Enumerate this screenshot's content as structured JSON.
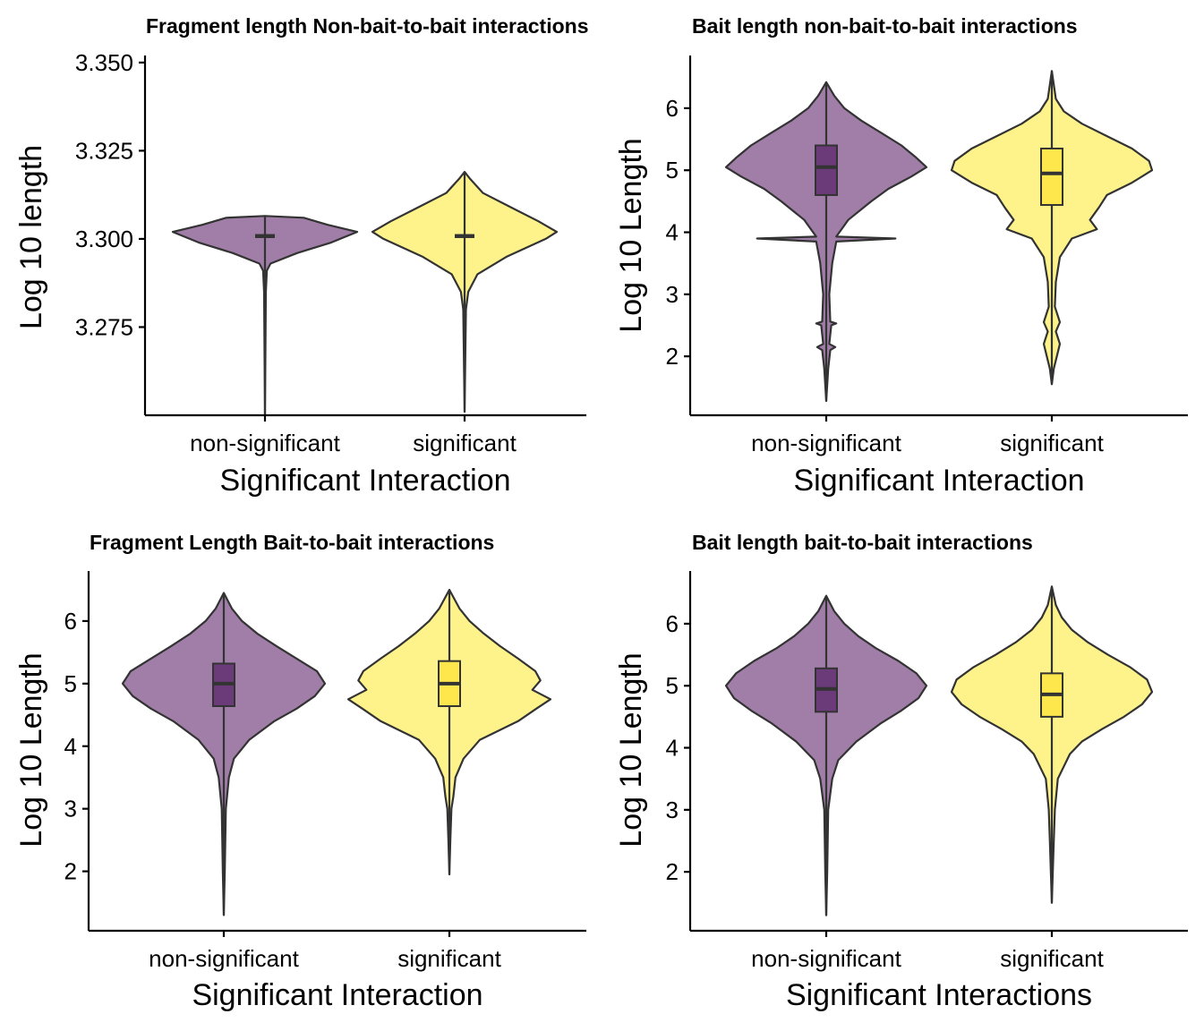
{
  "colors": {
    "non_significant_fill": "#a07ea8",
    "significant_fill": "#fef38b",
    "non_significant_box": "#6b3a78",
    "significant_box": "#fde74c",
    "outline": "#333333",
    "axis": "#000000"
  },
  "chart_data": [
    {
      "type": "violin",
      "title": "Fragment length Non-bait-to-bait interactions",
      "xlabel": "Significant Interaction",
      "ylabel": "Log 10 length",
      "categories": [
        "non-significant",
        "significant"
      ],
      "ylim": [
        3.25,
        3.352
      ],
      "yticks": [
        "3.275",
        "3.300",
        "3.325",
        "3.350"
      ],
      "ytick_values": [
        3.275,
        3.3,
        3.325,
        3.35
      ],
      "grid": false,
      "legend": "none",
      "series": [
        {
          "category": "non-significant",
          "box": {
            "q1": 3.3005,
            "median": 3.3008,
            "q3": 3.3011
          },
          "profile": [
            [
              3.25,
              0.0
            ],
            [
              3.285,
              0.01
            ],
            [
              3.291,
              0.02
            ],
            [
              3.293,
              0.06
            ],
            [
              3.296,
              0.35
            ],
            [
              3.299,
              0.72
            ],
            [
              3.302,
              1.0
            ],
            [
              3.304,
              0.68
            ],
            [
              3.306,
              0.42
            ],
            [
              3.3065,
              0.0
            ]
          ]
        },
        {
          "category": "significant",
          "box": {
            "q1": 3.3005,
            "median": 3.3008,
            "q3": 3.3011
          },
          "profile": [
            [
              3.251,
              0.0
            ],
            [
              3.28,
              0.015
            ],
            [
              3.285,
              0.04
            ],
            [
              3.29,
              0.14
            ],
            [
              3.295,
              0.46
            ],
            [
              3.3,
              0.88
            ],
            [
              3.302,
              1.0
            ],
            [
              3.305,
              0.8
            ],
            [
              3.309,
              0.5
            ],
            [
              3.313,
              0.2
            ],
            [
              3.317,
              0.06
            ],
            [
              3.319,
              0.0
            ]
          ]
        }
      ]
    },
    {
      "type": "violin",
      "title": "Bait length non-bait-to-bait interactions",
      "xlabel": "Significant Interaction",
      "ylabel": "Log 10 Length",
      "categories": [
        "non-significant",
        "significant"
      ],
      "ylim": [
        1.05,
        6.85
      ],
      "yticks": [
        "2",
        "3",
        "4",
        "5",
        "6"
      ],
      "ytick_values": [
        2,
        3,
        4,
        5,
        6
      ],
      "grid": false,
      "legend": "none",
      "series": [
        {
          "category": "non-significant",
          "box": {
            "q1": 4.6,
            "median": 5.05,
            "q3": 5.4
          },
          "profile": [
            [
              1.28,
              0.0
            ],
            [
              1.8,
              0.02
            ],
            [
              2.1,
              0.04
            ],
            [
              2.15,
              0.09
            ],
            [
              2.2,
              0.03
            ],
            [
              2.5,
              0.05
            ],
            [
              2.53,
              0.1
            ],
            [
              2.56,
              0.04
            ],
            [
              3.0,
              0.03
            ],
            [
              3.5,
              0.06
            ],
            [
              3.85,
              0.1
            ],
            [
              3.9,
              0.69
            ],
            [
              3.93,
              0.1
            ],
            [
              4.2,
              0.22
            ],
            [
              4.5,
              0.45
            ],
            [
              4.7,
              0.62
            ],
            [
              4.9,
              0.85
            ],
            [
              5.05,
              1.0
            ],
            [
              5.2,
              0.9
            ],
            [
              5.4,
              0.75
            ],
            [
              5.6,
              0.55
            ],
            [
              5.8,
              0.35
            ],
            [
              6.0,
              0.18
            ],
            [
              6.2,
              0.08
            ],
            [
              6.42,
              0.0
            ]
          ]
        },
        {
          "category": "significant",
          "box": {
            "q1": 4.44,
            "median": 4.95,
            "q3": 5.35
          },
          "profile": [
            [
              1.55,
              0.0
            ],
            [
              1.8,
              0.02
            ],
            [
              2.0,
              0.05
            ],
            [
              2.2,
              0.08
            ],
            [
              2.4,
              0.04
            ],
            [
              2.55,
              0.08
            ],
            [
              2.8,
              0.03
            ],
            [
              3.2,
              0.04
            ],
            [
              3.6,
              0.08
            ],
            [
              3.9,
              0.2
            ],
            [
              4.05,
              0.45
            ],
            [
              4.2,
              0.38
            ],
            [
              4.4,
              0.47
            ],
            [
              4.6,
              0.55
            ],
            [
              4.8,
              0.8
            ],
            [
              5.0,
              1.0
            ],
            [
              5.15,
              0.97
            ],
            [
              5.35,
              0.8
            ],
            [
              5.55,
              0.55
            ],
            [
              5.75,
              0.3
            ],
            [
              5.95,
              0.12
            ],
            [
              6.15,
              0.04
            ],
            [
              6.6,
              0.0
            ]
          ]
        }
      ]
    },
    {
      "type": "violin",
      "title": "Fragment Length Bait-to-bait interactions",
      "xlabel": "Significant Interaction",
      "ylabel": "Log 10 Length",
      "categories": [
        "non-significant",
        "significant"
      ],
      "ylim": [
        1.05,
        6.8
      ],
      "yticks": [
        "2",
        "3",
        "4",
        "5",
        "6"
      ],
      "ytick_values": [
        2,
        3,
        4,
        5,
        6
      ],
      "grid": false,
      "legend": "none",
      "series": [
        {
          "category": "non-significant",
          "box": {
            "q1": 4.64,
            "median": 5.0,
            "q3": 5.32
          },
          "profile": [
            [
              1.3,
              0.0
            ],
            [
              2.0,
              0.01
            ],
            [
              3.0,
              0.02
            ],
            [
              3.5,
              0.05
            ],
            [
              3.8,
              0.1
            ],
            [
              4.1,
              0.25
            ],
            [
              4.4,
              0.5
            ],
            [
              4.6,
              0.72
            ],
            [
              4.8,
              0.9
            ],
            [
              5.0,
              1.0
            ],
            [
              5.2,
              0.92
            ],
            [
              5.4,
              0.72
            ],
            [
              5.6,
              0.52
            ],
            [
              5.8,
              0.33
            ],
            [
              6.0,
              0.18
            ],
            [
              6.2,
              0.08
            ],
            [
              6.45,
              0.0
            ]
          ]
        },
        {
          "category": "significant",
          "box": {
            "q1": 4.64,
            "median": 5.0,
            "q3": 5.36
          },
          "profile": [
            [
              1.95,
              0.0
            ],
            [
              2.5,
              0.01
            ],
            [
              3.0,
              0.02
            ],
            [
              3.2,
              0.04
            ],
            [
              3.5,
              0.06
            ],
            [
              3.8,
              0.14
            ],
            [
              4.1,
              0.3
            ],
            [
              4.4,
              0.68
            ],
            [
              4.6,
              0.86
            ],
            [
              4.75,
              1.0
            ],
            [
              4.9,
              0.82
            ],
            [
              5.05,
              0.9
            ],
            [
              5.2,
              0.85
            ],
            [
              5.4,
              0.68
            ],
            [
              5.6,
              0.5
            ],
            [
              5.8,
              0.34
            ],
            [
              6.0,
              0.2
            ],
            [
              6.2,
              0.1
            ],
            [
              6.5,
              0.0
            ]
          ]
        }
      ]
    },
    {
      "type": "violin",
      "title": "Bait length bait-to-bait interactions",
      "xlabel": "Significant Interactions",
      "ylabel": "Log 10 Length",
      "categories": [
        "non-significant",
        "significant"
      ],
      "ylim": [
        1.05,
        6.85
      ],
      "yticks": [
        "2",
        "3",
        "4",
        "5",
        "6"
      ],
      "ytick_values": [
        2,
        3,
        4,
        5,
        6
      ],
      "grid": false,
      "legend": "none",
      "series": [
        {
          "category": "non-significant",
          "box": {
            "q1": 4.58,
            "median": 4.95,
            "q3": 5.28
          },
          "profile": [
            [
              1.3,
              0.0
            ],
            [
              2.0,
              0.01
            ],
            [
              3.0,
              0.02
            ],
            [
              3.5,
              0.06
            ],
            [
              3.8,
              0.12
            ],
            [
              4.1,
              0.3
            ],
            [
              4.4,
              0.55
            ],
            [
              4.6,
              0.75
            ],
            [
              4.8,
              0.92
            ],
            [
              5.0,
              1.0
            ],
            [
              5.2,
              0.9
            ],
            [
              5.4,
              0.72
            ],
            [
              5.6,
              0.5
            ],
            [
              5.8,
              0.32
            ],
            [
              6.0,
              0.18
            ],
            [
              6.2,
              0.08
            ],
            [
              6.45,
              0.0
            ]
          ]
        },
        {
          "category": "significant",
          "box": {
            "q1": 4.5,
            "median": 4.86,
            "q3": 5.2
          },
          "profile": [
            [
              1.5,
              0.0
            ],
            [
              2.0,
              0.01
            ],
            [
              2.5,
              0.02
            ],
            [
              3.0,
              0.03
            ],
            [
              3.5,
              0.06
            ],
            [
              3.9,
              0.18
            ],
            [
              4.1,
              0.3
            ],
            [
              4.3,
              0.5
            ],
            [
              4.5,
              0.72
            ],
            [
              4.7,
              0.9
            ],
            [
              4.9,
              1.0
            ],
            [
              5.1,
              0.95
            ],
            [
              5.3,
              0.78
            ],
            [
              5.5,
              0.56
            ],
            [
              5.7,
              0.36
            ],
            [
              5.9,
              0.2
            ],
            [
              6.1,
              0.1
            ],
            [
              6.3,
              0.04
            ],
            [
              6.6,
              0.0
            ]
          ]
        }
      ]
    }
  ]
}
